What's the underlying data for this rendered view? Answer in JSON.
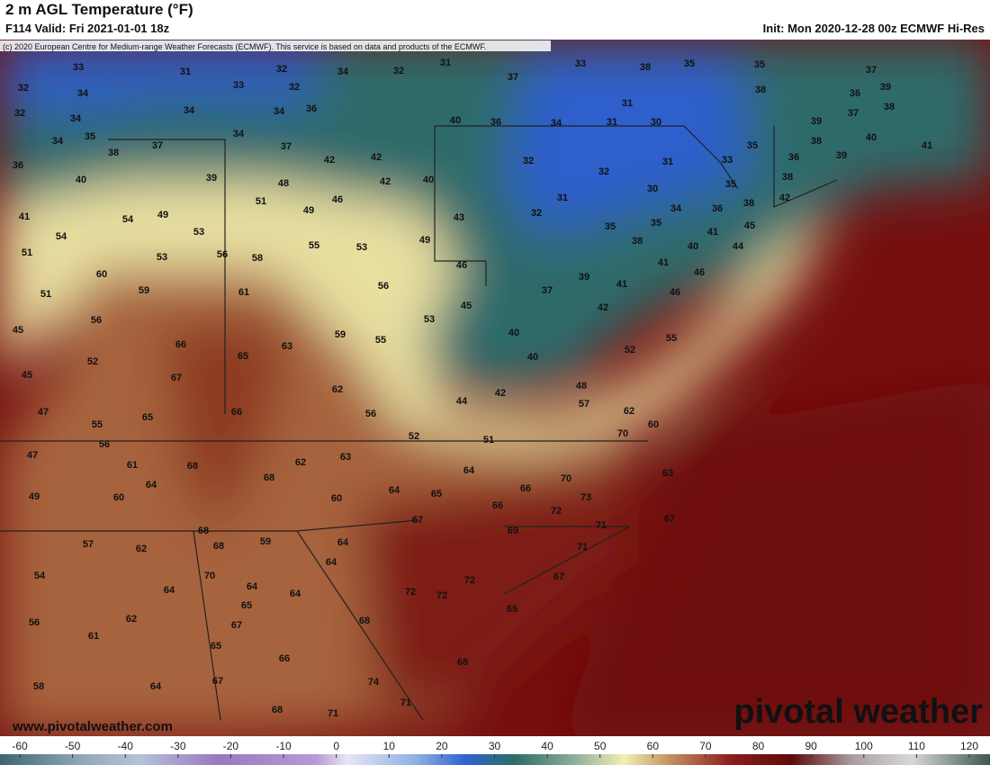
{
  "header": {
    "title": "2 m AGL Temperature (°F)",
    "valid": "F114 Valid: Fri 2021-01-01 18z",
    "init": "Init: Mon 2020-12-28 00z ECMWF Hi-Res",
    "credit": "(c) 2020 European Centre for Medium-range Weather Forecasts (ECMWF). This service is based on data and products of the ECMWF."
  },
  "footer": {
    "url": "www.pivotalweather.com",
    "logo": "pivotal weather"
  },
  "colorbar": {
    "ticks": [
      -60,
      -50,
      -40,
      -30,
      -20,
      -10,
      0,
      10,
      20,
      30,
      40,
      50,
      60,
      70,
      80,
      90,
      100,
      110,
      120
    ]
  },
  "stations": [
    33,
    31,
    32,
    34,
    32,
    31,
    37,
    33,
    38,
    35,
    35,
    37,
    32,
    34,
    33,
    32,
    38,
    36,
    39,
    32,
    34,
    34,
    36,
    31,
    37,
    38,
    34,
    40,
    36,
    34,
    31,
    30,
    39,
    34,
    35,
    34,
    38,
    40,
    41,
    38,
    37,
    37,
    42,
    42,
    35,
    36,
    32,
    32,
    31,
    33,
    36,
    39,
    40,
    39,
    48,
    42,
    40,
    38,
    35,
    51,
    46,
    31,
    30,
    42,
    41,
    54,
    49,
    49,
    43,
    32,
    34,
    36,
    38,
    35,
    35,
    45,
    54,
    53,
    55,
    53,
    49,
    38,
    41,
    40,
    44,
    51,
    53,
    56,
    58,
    46,
    41,
    60,
    39,
    46,
    51,
    59,
    61,
    56,
    37,
    41,
    46,
    45,
    42,
    56,
    53,
    45,
    59,
    55,
    40,
    55,
    66,
    63,
    52,
    52,
    65,
    40,
    45,
    67,
    62,
    48,
    42,
    44,
    57,
    47,
    65,
    66,
    56,
    62,
    55,
    60,
    52,
    51,
    70,
    56,
    47,
    62,
    63,
    61,
    68,
    64,
    63,
    68,
    70,
    64,
    64,
    65,
    66,
    49,
    60,
    60,
    73,
    66,
    72,
    67,
    67,
    71,
    68,
    69,
    57,
    62,
    68,
    59,
    64,
    71,
    70,
    64,
    54,
    67,
    64,
    64,
    64,
    72,
    72,
    72,
    65,
    65,
    62,
    67,
    68,
    56,
    61,
    65,
    66,
    68,
    67,
    74,
    58,
    64,
    71,
    68,
    71
  ]
}
